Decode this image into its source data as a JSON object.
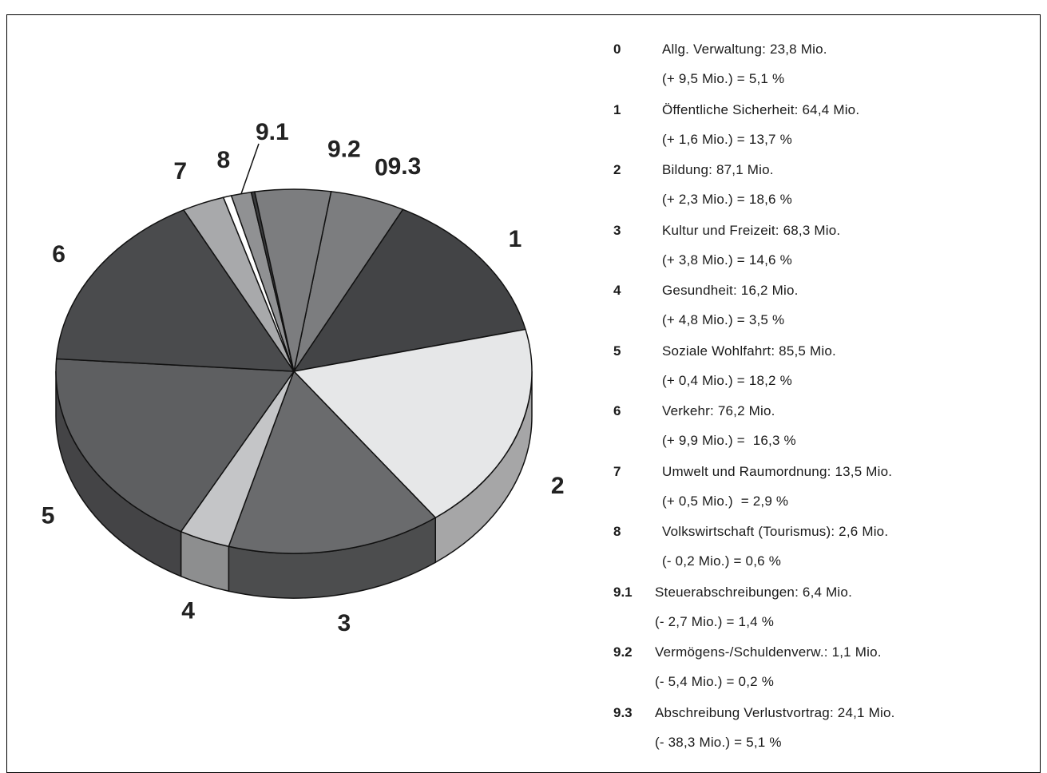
{
  "chart_data": {
    "type": "pie",
    "style": "3d-tilted",
    "unit": "Mio.",
    "slices": [
      {
        "key": "0",
        "name": "Allg. Verwaltung",
        "value": 23.8,
        "change": "+ 9,5 Mio.",
        "percent": 5.1,
        "color": "#7c7d7f",
        "line1": "Allg. Verwaltung: 23,8 Mio.",
        "line2": "(+ 9,5 Mio.) = 5,1 %"
      },
      {
        "key": "1",
        "name": "Öffentliche Sicherheit",
        "value": 64.4,
        "change": "+ 1,6 Mio.",
        "percent": 13.7,
        "color": "#434446",
        "line1": "Öffentliche Sicherheit: 64,4 Mio.",
        "line2": "(+ 1,6 Mio.) = 13,7 %"
      },
      {
        "key": "2",
        "name": "Bildung",
        "value": 87.1,
        "change": "+ 2,3 Mio.",
        "percent": 18.6,
        "color": "#e6e7e8",
        "line1": "Bildung: 87,1 Mio.",
        "line2": "(+ 2,3 Mio.) = 18,6 %"
      },
      {
        "key": "3",
        "name": "Kultur und Freizeit",
        "value": 68.3,
        "change": "+ 3,8 Mio.",
        "percent": 14.6,
        "color": "#6a6b6d",
        "line1": "Kultur und Freizeit: 68,3 Mio.",
        "line2": "(+ 3,8 Mio.) = 14,6 %"
      },
      {
        "key": "4",
        "name": "Gesundheit",
        "value": 16.2,
        "change": "+ 4,8 Mio.",
        "percent": 3.5,
        "color": "#c4c5c7",
        "line1": "Gesundheit: 16,2 Mio.",
        "line2": "(+ 4,8 Mio.) = 3,5 %"
      },
      {
        "key": "5",
        "name": "Soziale Wohlfahrt",
        "value": 85.5,
        "change": "+ 0,4 Mio.",
        "percent": 18.2,
        "color": "#5e5f61",
        "line1": "Soziale Wohlfahrt: 85,5 Mio.",
        "line2": "(+ 0,4 Mio.) = 18,2 %"
      },
      {
        "key": "6",
        "name": "Verkehr",
        "value": 76.2,
        "change": "+ 9,9 Mio.",
        "percent": 16.3,
        "color": "#4a4b4d",
        "line1": "Verkehr: 76,2 Mio.",
        "line2": "(+ 9,9 Mio.) =  16,3 %"
      },
      {
        "key": "7",
        "name": "Umwelt und Raumordnung",
        "value": 13.5,
        "change": "+ 0,5 Mio.",
        "percent": 2.9,
        "color": "#a8a9ab",
        "line1": "Umwelt und Raumordnung: 13,5 Mio.",
        "line2": "(+ 0,5 Mio.)  = 2,9 %"
      },
      {
        "key": "8",
        "name": "Volkswirtschaft (Tourismus)",
        "value": 2.6,
        "change": "- 0,2 Mio.",
        "percent": 0.6,
        "color": "#ffffff",
        "line1": "Volkswirtschaft (Tourismus): 2,6 Mio.",
        "line2": "(- 0,2 Mio.) = 0,6 %"
      },
      {
        "key": "9.1",
        "name": "Steuerabschreibungen",
        "value": 6.4,
        "change": "- 2,7 Mio.",
        "percent": 1.4,
        "color": "#909193",
        "line1": "Steuerabschreibungen: 6,4 Mio.",
        "line2": "(- 2,7 Mio.) = 1,4 %"
      },
      {
        "key": "9.2",
        "name": "Vermögens-/Schuldenverw.",
        "value": 1.1,
        "change": "- 5,4 Mio.",
        "percent": 0.2,
        "color": "#3a3b3d",
        "line1": "Vermögens-/Schuldenverw.: 1,1 Mio.",
        "line2": "(- 5,4 Mio.) = 0,2 %"
      },
      {
        "key": "9.3",
        "name": "Abschreibung Verlustvortrag",
        "value": 24.1,
        "change": "- 38,3 Mio.",
        "percent": 5.1,
        "color": "#7c7d7f",
        "line1": "Abschreibung Verlustvortrag: 24,1 Mio.",
        "line2": "(- 38,3 Mio.) = 5,1 %"
      }
    ]
  }
}
